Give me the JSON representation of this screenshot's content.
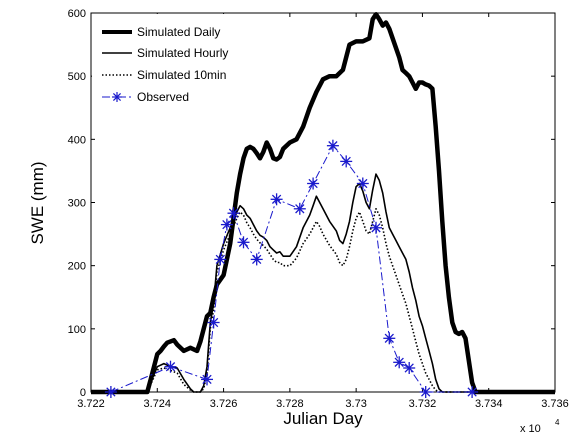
{
  "chart_data": {
    "type": "line",
    "xlabel": "Julian Day",
    "ylabel": "SWE (mm)",
    "x_multiplier_label": "x 10",
    "x_multiplier_exp": "4",
    "xlim": [
      37220,
      37360
    ],
    "ylim": [
      0,
      600
    ],
    "x_ticks": [
      37220,
      37240,
      37260,
      37280,
      37300,
      37320,
      37340,
      37360
    ],
    "x_tick_labels": [
      "3.722",
      "3.724",
      "3.726",
      "3.728",
      "3.73",
      "3.732",
      "3.734",
      "3.736"
    ],
    "y_ticks": [
      0,
      100,
      200,
      300,
      400,
      500,
      600
    ],
    "y_tick_labels": [
      "0",
      "100",
      "200",
      "300",
      "400",
      "500",
      "600"
    ],
    "grid": false,
    "legend_position": "top-left",
    "series": [
      {
        "name": "Simulated Daily",
        "style": "thick-solid",
        "color": "#000000",
        "x": [
          37220,
          37237,
          37238,
          37240,
          37241,
          37242,
          37243,
          37245,
          37246,
          37248,
          37250,
          37252,
          37253,
          37254,
          37255,
          37256,
          37257,
          37258,
          37260,
          37262,
          37263,
          37264,
          37265,
          37266,
          37267,
          37268,
          37269,
          37270,
          37271,
          37272,
          37273,
          37274,
          37275,
          37276,
          37277,
          37278,
          37280,
          37282,
          37284,
          37286,
          37288,
          37290,
          37292,
          37294,
          37296,
          37298,
          37300,
          37302,
          37304,
          37305,
          37306,
          37307,
          37308,
          37309,
          37310,
          37311,
          37312,
          37313,
          37314,
          37315,
          37316,
          37317,
          37318,
          37319,
          37320,
          37321,
          37322,
          37323,
          37324,
          37325,
          37326,
          37327,
          37328,
          37329,
          37330,
          37331,
          37332,
          37333,
          37334,
          37335,
          37336,
          37337,
          37338,
          37340,
          37360
        ],
        "y": [
          0,
          0,
          20,
          60,
          65,
          72,
          78,
          82,
          75,
          65,
          70,
          65,
          80,
          100,
          120,
          125,
          150,
          170,
          185,
          235,
          275,
          315,
          345,
          370,
          385,
          388,
          385,
          378,
          370,
          380,
          395,
          385,
          370,
          368,
          372,
          385,
          395,
          400,
          420,
          450,
          475,
          495,
          500,
          500,
          510,
          550,
          555,
          555,
          560,
          590,
          598,
          590,
          580,
          585,
          575,
          560,
          545,
          530,
          510,
          505,
          500,
          490,
          480,
          490,
          490,
          487,
          485,
          480,
          420,
          350,
          270,
          200,
          150,
          110,
          95,
          92,
          95,
          85,
          50,
          15,
          0,
          0,
          0,
          0,
          0
        ]
      },
      {
        "name": "Simulated Hourly",
        "style": "thin-solid",
        "color": "#000000",
        "x": [
          37220,
          37237,
          37238,
          37240,
          37242,
          37244,
          37246,
          37248,
          37250,
          37251,
          37252,
          37253,
          37254,
          37255,
          37256,
          37257,
          37258,
          37260,
          37262,
          37263,
          37264,
          37265,
          37266,
          37267,
          37268,
          37269,
          37270,
          37271,
          37272,
          37273,
          37274,
          37275,
          37276,
          37277,
          37278,
          37280,
          37282,
          37284,
          37286,
          37287,
          37288,
          37289,
          37290,
          37292,
          37294,
          37295,
          37296,
          37297,
          37298,
          37299,
          37300,
          37301,
          37302,
          37303,
          37304,
          37305,
          37306,
          37307,
          37308,
          37309,
          37310,
          37311,
          37312,
          37313,
          37314,
          37315,
          37316,
          37317,
          37318,
          37319,
          37320,
          37321,
          37322,
          37323,
          37324,
          37325,
          37326,
          37327,
          37328,
          37360
        ],
        "y": [
          0,
          0,
          15,
          40,
          45,
          40,
          38,
          20,
          5,
          0,
          0,
          0,
          10,
          40,
          110,
          140,
          200,
          235,
          260,
          270,
          285,
          295,
          290,
          280,
          275,
          265,
          255,
          248,
          245,
          240,
          230,
          225,
          220,
          222,
          215,
          215,
          230,
          260,
          280,
          295,
          310,
          300,
          290,
          270,
          255,
          240,
          235,
          250,
          270,
          300,
          325,
          330,
          318,
          300,
          290,
          320,
          345,
          335,
          315,
          285,
          260,
          250,
          240,
          230,
          220,
          210,
          190,
          165,
          145,
          120,
          105,
          85,
          65,
          45,
          20,
          5,
          0,
          0,
          0,
          0
        ]
      },
      {
        "name": "Simulated 10min",
        "style": "dotted",
        "color": "#000000",
        "x": [
          37220,
          37237,
          37238,
          37240,
          37242,
          37244,
          37246,
          37248,
          37250,
          37251,
          37252,
          37253,
          37254,
          37255,
          37256,
          37257,
          37258,
          37260,
          37262,
          37263,
          37264,
          37265,
          37266,
          37267,
          37268,
          37269,
          37270,
          37271,
          37272,
          37273,
          37274,
          37275,
          37276,
          37277,
          37278,
          37280,
          37282,
          37284,
          37286,
          37287,
          37288,
          37289,
          37290,
          37292,
          37294,
          37295,
          37296,
          37297,
          37298,
          37299,
          37300,
          37301,
          37302,
          37303,
          37304,
          37305,
          37306,
          37307,
          37308,
          37309,
          37310,
          37311,
          37312,
          37313,
          37314,
          37315,
          37316,
          37317,
          37318,
          37319,
          37320,
          37321,
          37322,
          37323,
          37324,
          37325,
          37326,
          37360
        ],
        "y": [
          0,
          0,
          12,
          35,
          38,
          34,
          30,
          12,
          3,
          0,
          0,
          0,
          5,
          30,
          100,
          130,
          190,
          225,
          250,
          262,
          275,
          285,
          280,
          268,
          260,
          250,
          242,
          236,
          232,
          226,
          218,
          210,
          205,
          205,
          200,
          200,
          212,
          235,
          250,
          260,
          270,
          262,
          250,
          232,
          218,
          205,
          200,
          210,
          230,
          255,
          275,
          285,
          270,
          255,
          250,
          270,
          290,
          280,
          260,
          235,
          215,
          200,
          185,
          170,
          155,
          140,
          120,
          100,
          80,
          60,
          45,
          30,
          20,
          10,
          3,
          0,
          0,
          0
        ]
      },
      {
        "name": "Observed",
        "style": "dashdot-star",
        "color": "#1a1acc",
        "x": [
          37226,
          37244,
          37255,
          37257,
          37259,
          37261,
          37263,
          37266,
          37270,
          37276,
          37283,
          37287,
          37293,
          37297,
          37302,
          37306,
          37310,
          37313,
          37316,
          37321,
          37335
        ],
        "y": [
          0,
          40,
          20,
          110,
          210,
          265,
          283,
          237,
          210,
          305,
          290,
          330,
          390,
          365,
          330,
          260,
          85,
          47,
          38,
          0,
          0
        ]
      }
    ]
  }
}
